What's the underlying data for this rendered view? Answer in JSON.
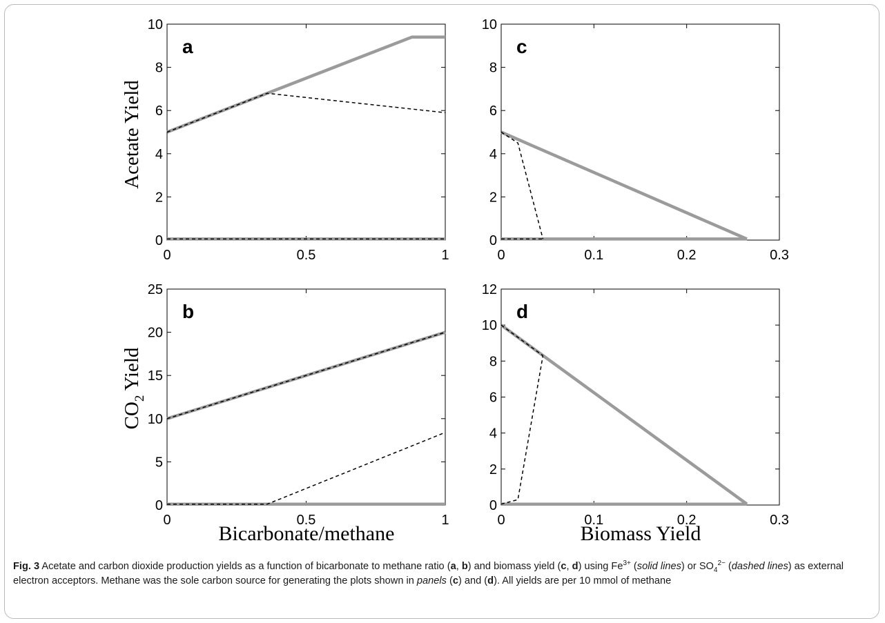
{
  "ylabels": {
    "top": "Acetate Yield",
    "bottom_main": "CO",
    "bottom_sub": "2",
    "bottom_rest": " Yield"
  },
  "xlabels": {
    "left": "Bicarbonate/methane",
    "right": "Biomass Yield"
  },
  "caption": {
    "fig_label": "Fig. 3",
    "s1": "  Acetate and carbon dioxide production yields as a function of bicarbonate to methane ratio (",
    "a": "a",
    "comma1": ", ",
    "b": "b",
    "s2": ") and biomass yield (",
    "c": "c",
    "comma2": ", ",
    "d": "d",
    "s3": ") using Fe",
    "fe_sup": "3+",
    "s4": " (",
    "solid": "solid lines",
    "s5": ") or SO",
    "so_sub": "4",
    "so_sup": "2−",
    "s6": " (",
    "dashed": "dashed lines",
    "s7": ") as external electron acceptors. Methane was the sole carbon source for generating the plots shown in ",
    "panels": "panels",
    "s8": " (",
    "c2": "c",
    "s9": ") and (",
    "d2": "d",
    "s10": "). All yields are per 10 mmol of methane"
  },
  "colors": {
    "solid": "#9b9b9b",
    "dashed": "#000000"
  },
  "chart_data": [
    {
      "panel": "a",
      "type": "line",
      "xlim": [
        0,
        1
      ],
      "ylim": [
        0,
        10
      ],
      "xticks": [
        0,
        0.5,
        1
      ],
      "xtick_labels": [
        "0",
        "0.5",
        "1"
      ],
      "yticks": [
        0,
        2,
        4,
        6,
        8,
        10
      ],
      "ytick_labels": [
        "0",
        "2",
        "4",
        "6",
        "8",
        "10"
      ],
      "series": [
        {
          "style": "solid",
          "x": [
            0,
            0.36,
            0.88,
            1
          ],
          "y": [
            5,
            6.8,
            9.4,
            9.4
          ]
        },
        {
          "style": "solid",
          "x": [
            0,
            1
          ],
          "y": [
            0.05,
            0.05
          ]
        },
        {
          "style": "dashed",
          "x": [
            0,
            0.36,
            1
          ],
          "y": [
            5,
            6.8,
            5.9
          ]
        },
        {
          "style": "dashed",
          "x": [
            0,
            1
          ],
          "y": [
            0.05,
            0.05
          ]
        }
      ]
    },
    {
      "panel": "b",
      "type": "line",
      "xlim": [
        0,
        1
      ],
      "ylim": [
        0,
        25
      ],
      "xticks": [
        0,
        0.5,
        1
      ],
      "xtick_labels": [
        "0",
        "0.5",
        "1"
      ],
      "yticks": [
        0,
        5,
        10,
        15,
        20,
        25
      ],
      "ytick_labels": [
        "0",
        "5",
        "10",
        "15",
        "20",
        "25"
      ],
      "series": [
        {
          "style": "solid",
          "x": [
            0,
            1
          ],
          "y": [
            10,
            20
          ]
        },
        {
          "style": "solid",
          "x": [
            0,
            1
          ],
          "y": [
            0.1,
            0.1
          ]
        },
        {
          "style": "dashed",
          "x": [
            0,
            1
          ],
          "y": [
            10,
            20
          ]
        },
        {
          "style": "dashed",
          "x": [
            0,
            0.36,
            1
          ],
          "y": [
            0.1,
            0.1,
            8.4
          ]
        }
      ]
    },
    {
      "panel": "c",
      "type": "line",
      "xlim": [
        0,
        0.3
      ],
      "ylim": [
        0,
        10
      ],
      "xticks": [
        0,
        0.1,
        0.2,
        0.3
      ],
      "xtick_labels": [
        "0",
        "0.1",
        "0.2",
        "0.3"
      ],
      "yticks": [
        0,
        2,
        4,
        6,
        8,
        10
      ],
      "ytick_labels": [
        "0",
        "2",
        "4",
        "6",
        "8",
        "10"
      ],
      "series": [
        {
          "style": "solid",
          "x": [
            0,
            0.265
          ],
          "y": [
            5,
            0.05
          ]
        },
        {
          "style": "solid",
          "x": [
            0,
            0.265
          ],
          "y": [
            0.05,
            0.05
          ]
        },
        {
          "style": "dashed",
          "x": [
            0,
            0.018,
            0.045
          ],
          "y": [
            5,
            4.5,
            0.05
          ]
        },
        {
          "style": "dashed",
          "x": [
            0,
            0.045
          ],
          "y": [
            0.05,
            0.05
          ]
        }
      ]
    },
    {
      "panel": "d",
      "type": "line",
      "xlim": [
        0,
        0.3
      ],
      "ylim": [
        0,
        12
      ],
      "xticks": [
        0,
        0.1,
        0.2,
        0.3
      ],
      "xtick_labels": [
        "0",
        "0.1",
        "0.2",
        "0.3"
      ],
      "yticks": [
        0,
        2,
        4,
        6,
        8,
        10,
        12
      ],
      "ytick_labels": [
        "0",
        "2",
        "4",
        "6",
        "8",
        "10",
        "12"
      ],
      "series": [
        {
          "style": "solid",
          "x": [
            0,
            0.265
          ],
          "y": [
            10,
            0.05
          ]
        },
        {
          "style": "solid",
          "x": [
            0,
            0.265
          ],
          "y": [
            0.05,
            0.05
          ]
        },
        {
          "style": "dashed",
          "x": [
            0,
            0.045
          ],
          "y": [
            10,
            8.3
          ]
        },
        {
          "style": "dashed",
          "x": [
            0,
            0.018,
            0.045
          ],
          "y": [
            0.05,
            0.3,
            8.3
          ]
        }
      ]
    }
  ]
}
